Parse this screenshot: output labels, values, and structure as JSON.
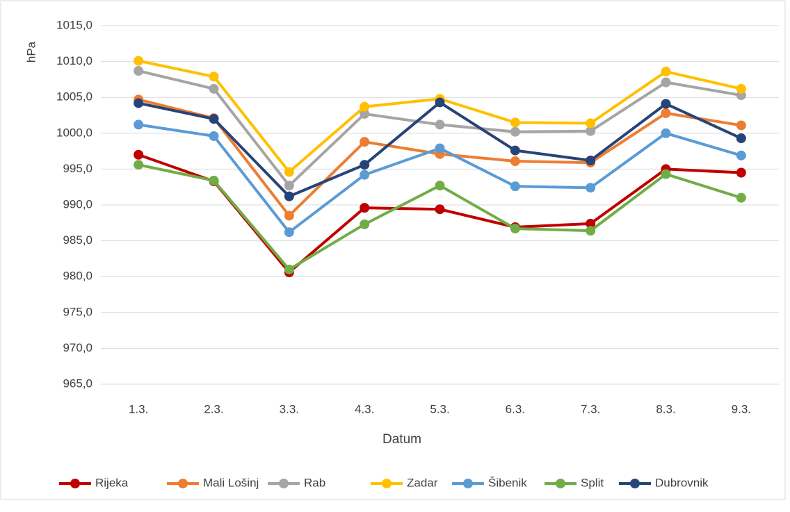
{
  "chart_data": {
    "type": "line",
    "x_label": "Datum",
    "y_label": "hPa",
    "categories": [
      "1.3.",
      "2.3.",
      "3.3.",
      "4.3.",
      "5.3.",
      "6.3.",
      "7.3.",
      "8.3.",
      "9.3."
    ],
    "series": [
      {
        "name": "Rijeka",
        "color": "#c00000",
        "values": [
          997.0,
          993.3,
          980.6,
          989.6,
          989.4,
          986.9,
          987.4,
          995.0,
          994.5
        ]
      },
      {
        "name": "Mali Lošinj",
        "color": "#ed7d31",
        "values": [
          1004.7,
          1002.1,
          988.5,
          998.8,
          997.1,
          996.1,
          995.9,
          1002.8,
          1001.1
        ]
      },
      {
        "name": "Rab",
        "color": "#a5a5a5",
        "values": [
          1008.7,
          1006.2,
          992.7,
          1002.7,
          1001.2,
          1000.2,
          1000.3,
          1007.1,
          1005.3
        ]
      },
      {
        "name": "Zadar",
        "color": "#ffc000",
        "values": [
          1010.1,
          1007.9,
          994.6,
          1003.7,
          1004.8,
          1001.5,
          1001.4,
          1008.6,
          1006.2
        ]
      },
      {
        "name": "Šibenik",
        "color": "#5b9bd5",
        "values": [
          1001.2,
          999.6,
          986.2,
          994.2,
          997.9,
          992.6,
          992.4,
          1000.0,
          996.9
        ]
      },
      {
        "name": "Split",
        "color": "#70ad47",
        "values": [
          995.6,
          993.4,
          981.0,
          987.3,
          992.7,
          986.7,
          986.4,
          994.3,
          991.0
        ]
      },
      {
        "name": "Dubrovnik",
        "color": "#264478",
        "values": [
          1004.2,
          1002.0,
          991.2,
          995.6,
          1004.3,
          997.6,
          996.2,
          1004.1,
          999.3
        ]
      }
    ],
    "ylim": [
      965,
      1015
    ],
    "yticks": [
      {
        "value": 965,
        "label": "965,0"
      },
      {
        "value": 970,
        "label": "970,0"
      },
      {
        "value": 975,
        "label": "975,0"
      },
      {
        "value": 980,
        "label": "980,0"
      },
      {
        "value": 985,
        "label": "985,0"
      },
      {
        "value": 990,
        "label": "990,0"
      },
      {
        "value": 995,
        "label": "995,0"
      },
      {
        "value": 1000,
        "label": "1000,0"
      },
      {
        "value": 1005,
        "label": "1005,0"
      },
      {
        "value": 1010,
        "label": "1010,0"
      },
      {
        "value": 1015,
        "label": "1015,0"
      }
    ],
    "grid": true,
    "legend": "bottom"
  }
}
